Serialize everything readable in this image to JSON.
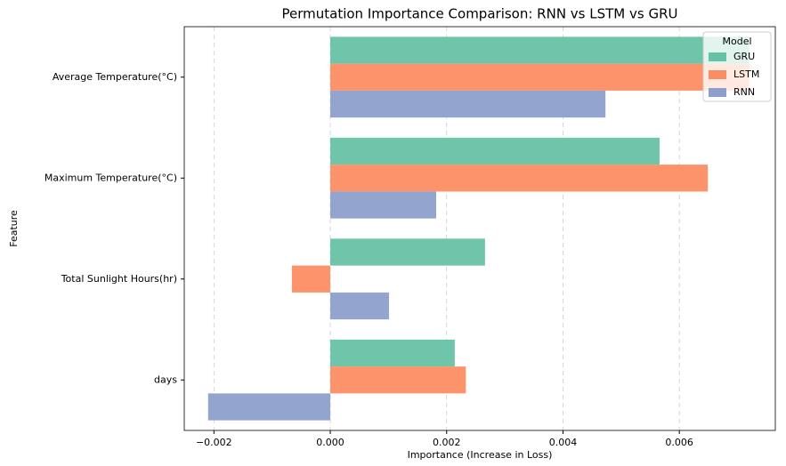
{
  "chart_data": {
    "type": "barh",
    "title": "Permutation Importance Comparison: RNN vs LSTM vs GRU",
    "xlabel": "Importance (Increase in Loss)",
    "ylabel": "Feature",
    "categories": [
      "Average Temperature(°C)",
      "Maximum Temperature(°C)",
      "Total Sunlight Hours(hr)",
      "days"
    ],
    "series": [
      {
        "name": "GRU",
        "color": "#66c2a5",
        "values": [
          0.0072,
          0.00566,
          0.00266,
          0.00214
        ]
      },
      {
        "name": "LSTM",
        "color": "#fc8d62",
        "values": [
          0.0072,
          0.00649,
          -0.00066,
          0.00233
        ]
      },
      {
        "name": "RNN",
        "color": "#8da0cb",
        "values": [
          0.00473,
          0.00182,
          0.00101,
          -0.0021
        ]
      }
    ],
    "legend_title": "Model",
    "legend": "upper right",
    "xlim": [
      -0.00251,
      0.00765
    ],
    "xticks": [
      {
        "value": -0.002,
        "label": "−0.002"
      },
      {
        "value": 0,
        "label": "0.000"
      },
      0.002,
      0.004,
      0.006
    ],
    "grid": true
  }
}
